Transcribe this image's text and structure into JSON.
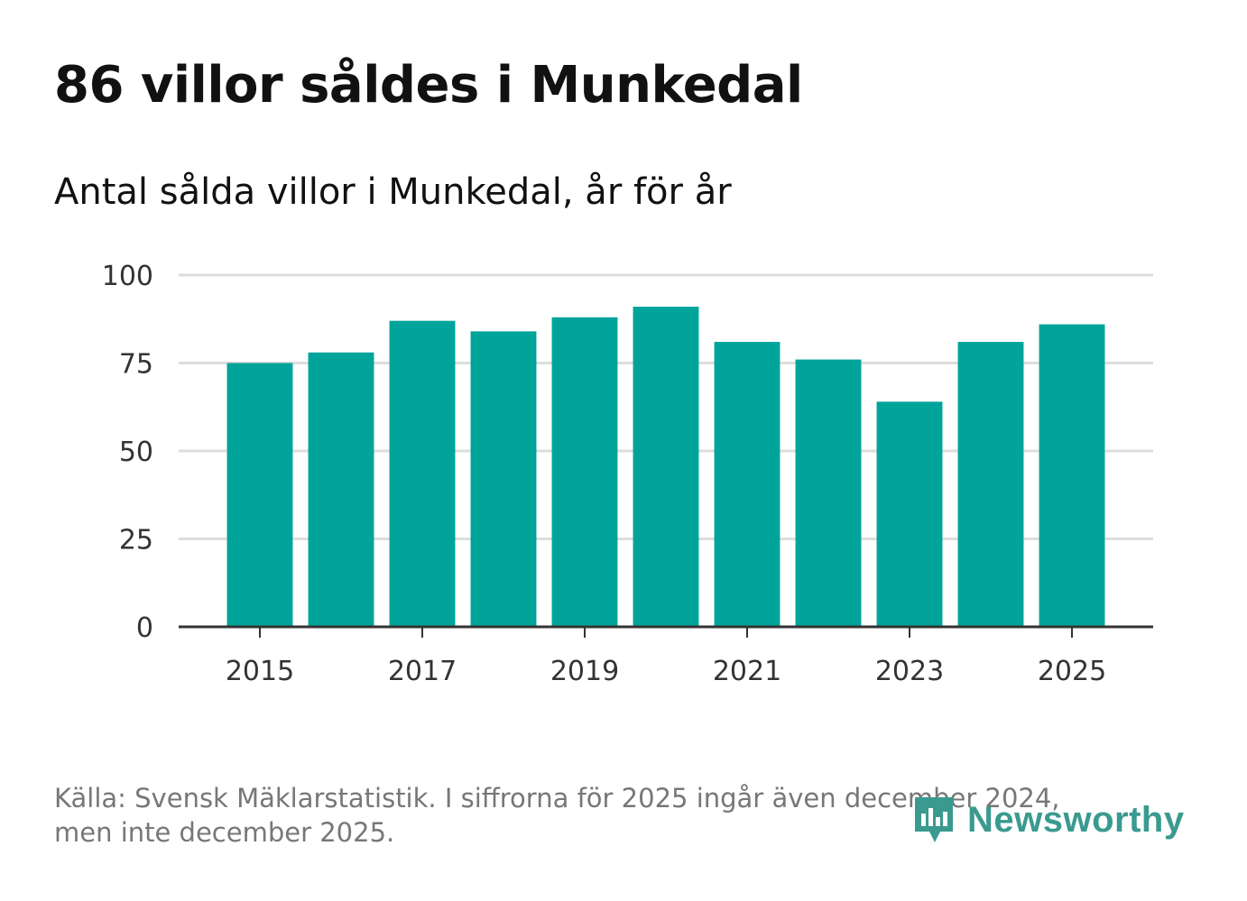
{
  "title": "86 villor såldes i Munkedal",
  "subtitle": "Antal sålda villor i Munkedal, år för år",
  "footer": {
    "source_line1": "Källa: Svensk Mäklarstatistik. I siffrorna för 2025 ingår även december 2024,",
    "source_line2": "men inte december 2025."
  },
  "logo": {
    "text": "Newsworthy",
    "icon": "newsworthy-logo-icon"
  },
  "colors": {
    "bar": "#00a49a",
    "grid": "#dddddd",
    "axis": "#333333",
    "logo": "#3a9a8f"
  },
  "chart_data": {
    "type": "bar",
    "title": "86 villor såldes i Munkedal",
    "subtitle": "Antal sålda villor i Munkedal, år för år",
    "xlabel": "",
    "ylabel": "",
    "categories": [
      "2015",
      "2016",
      "2017",
      "2018",
      "2019",
      "2020",
      "2021",
      "2022",
      "2023",
      "2024",
      "2025"
    ],
    "values": [
      75,
      78,
      87,
      84,
      88,
      91,
      81,
      76,
      64,
      81,
      86
    ],
    "ylim": [
      0,
      100
    ],
    "yticks": [
      0,
      25,
      50,
      75,
      100
    ],
    "xtick_labels": [
      "2015",
      "2017",
      "2019",
      "2021",
      "2023",
      "2025"
    ],
    "grid": true
  }
}
